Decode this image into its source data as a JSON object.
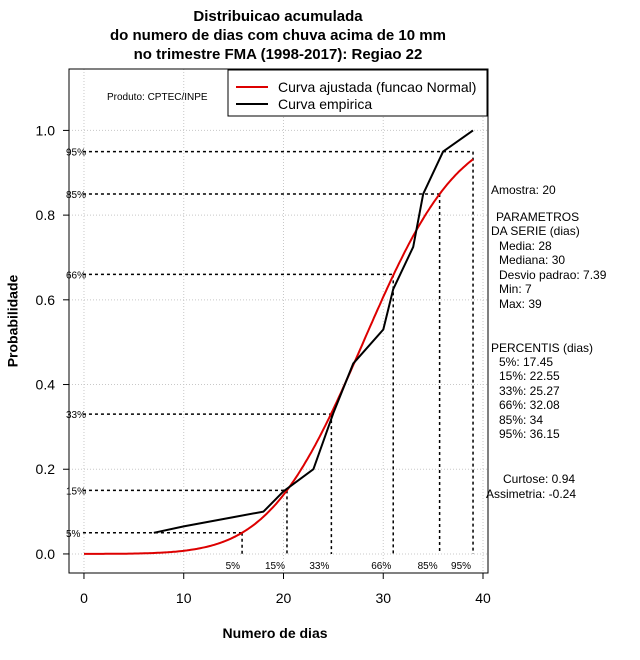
{
  "chart_data": {
    "type": "line",
    "title": [
      "Distribuicao acumulada",
      "do numero de dias com chuva acima de 10 mm",
      "no trimestre FMA (1998-2017): Regiao 22"
    ],
    "xlabel": "Numero de dias",
    "ylabel": "Probabilidade",
    "xlim": [
      -1.5,
      40.5
    ],
    "ylim": [
      -0.045,
      1.145
    ],
    "x_ticks": [
      0,
      10,
      20,
      30,
      40
    ],
    "x_tick_labels": [
      "0",
      "10",
      "20",
      "30",
      "40"
    ],
    "y_ticks": [
      0.0,
      0.2,
      0.4,
      0.6,
      0.8,
      1.0
    ],
    "y_tick_labels": [
      "0.0",
      "0.2",
      "0.4",
      "0.6",
      "0.8",
      "1.0"
    ],
    "grid": true,
    "credit": "Produto: CPTEC/INPE",
    "legend": {
      "position": "top-right",
      "entries": [
        {
          "label": "Curva ajustada (funcao Normal)",
          "color": "#dd0000"
        },
        {
          "label": "Curva empirica",
          "color": "#000000"
        }
      ]
    },
    "series": [
      {
        "name": "Curva ajustada (funcao Normal)",
        "color": "#dd0000",
        "distribution": {
          "mean": 28,
          "sd": 7.39
        },
        "x_range": [
          0,
          39
        ]
      },
      {
        "name": "Curva empirica",
        "color": "#000000",
        "x": [
          7,
          10,
          15,
          18,
          20,
          23,
          25,
          27,
          30,
          31,
          33,
          34,
          36,
          39
        ],
        "y": [
          0.05,
          0.065,
          0.087,
          0.1,
          0.148,
          0.2,
          0.333,
          0.45,
          0.53,
          0.625,
          0.725,
          0.85,
          0.95,
          1.0
        ]
      }
    ],
    "percentile_lines": [
      {
        "label": "5%",
        "prob": 0.05,
        "value": 15.85
      },
      {
        "label": "15%",
        "prob": 0.15,
        "value": 20.35
      },
      {
        "label": "33%",
        "prob": 0.33,
        "value": 24.8
      },
      {
        "label": "66%",
        "prob": 0.66,
        "value": 31.0
      },
      {
        "label": "85%",
        "prob": 0.85,
        "value": 35.65
      },
      {
        "label": "95%",
        "prob": 0.95,
        "value": 39.0
      }
    ]
  },
  "stats_panel": {
    "amostra": "Amostra: 20",
    "params_title_1": "PARAMETROS",
    "params_title_2": "DA SERIE (dias)",
    "params": [
      "Media: 28",
      "Mediana: 30",
      "Desvio padrao: 7.39",
      "Min: 7",
      "Max: 39"
    ],
    "percentis_title": "PERCENTIS (dias)",
    "percentis": [
      "5%: 17.45",
      "15%: 22.55",
      "33%: 25.27",
      "66%: 32.08",
      "85%: 34",
      "95%: 36.15"
    ],
    "curtose": "Curtose: 0.94",
    "assimetria": "Assimetria: -0.24"
  }
}
